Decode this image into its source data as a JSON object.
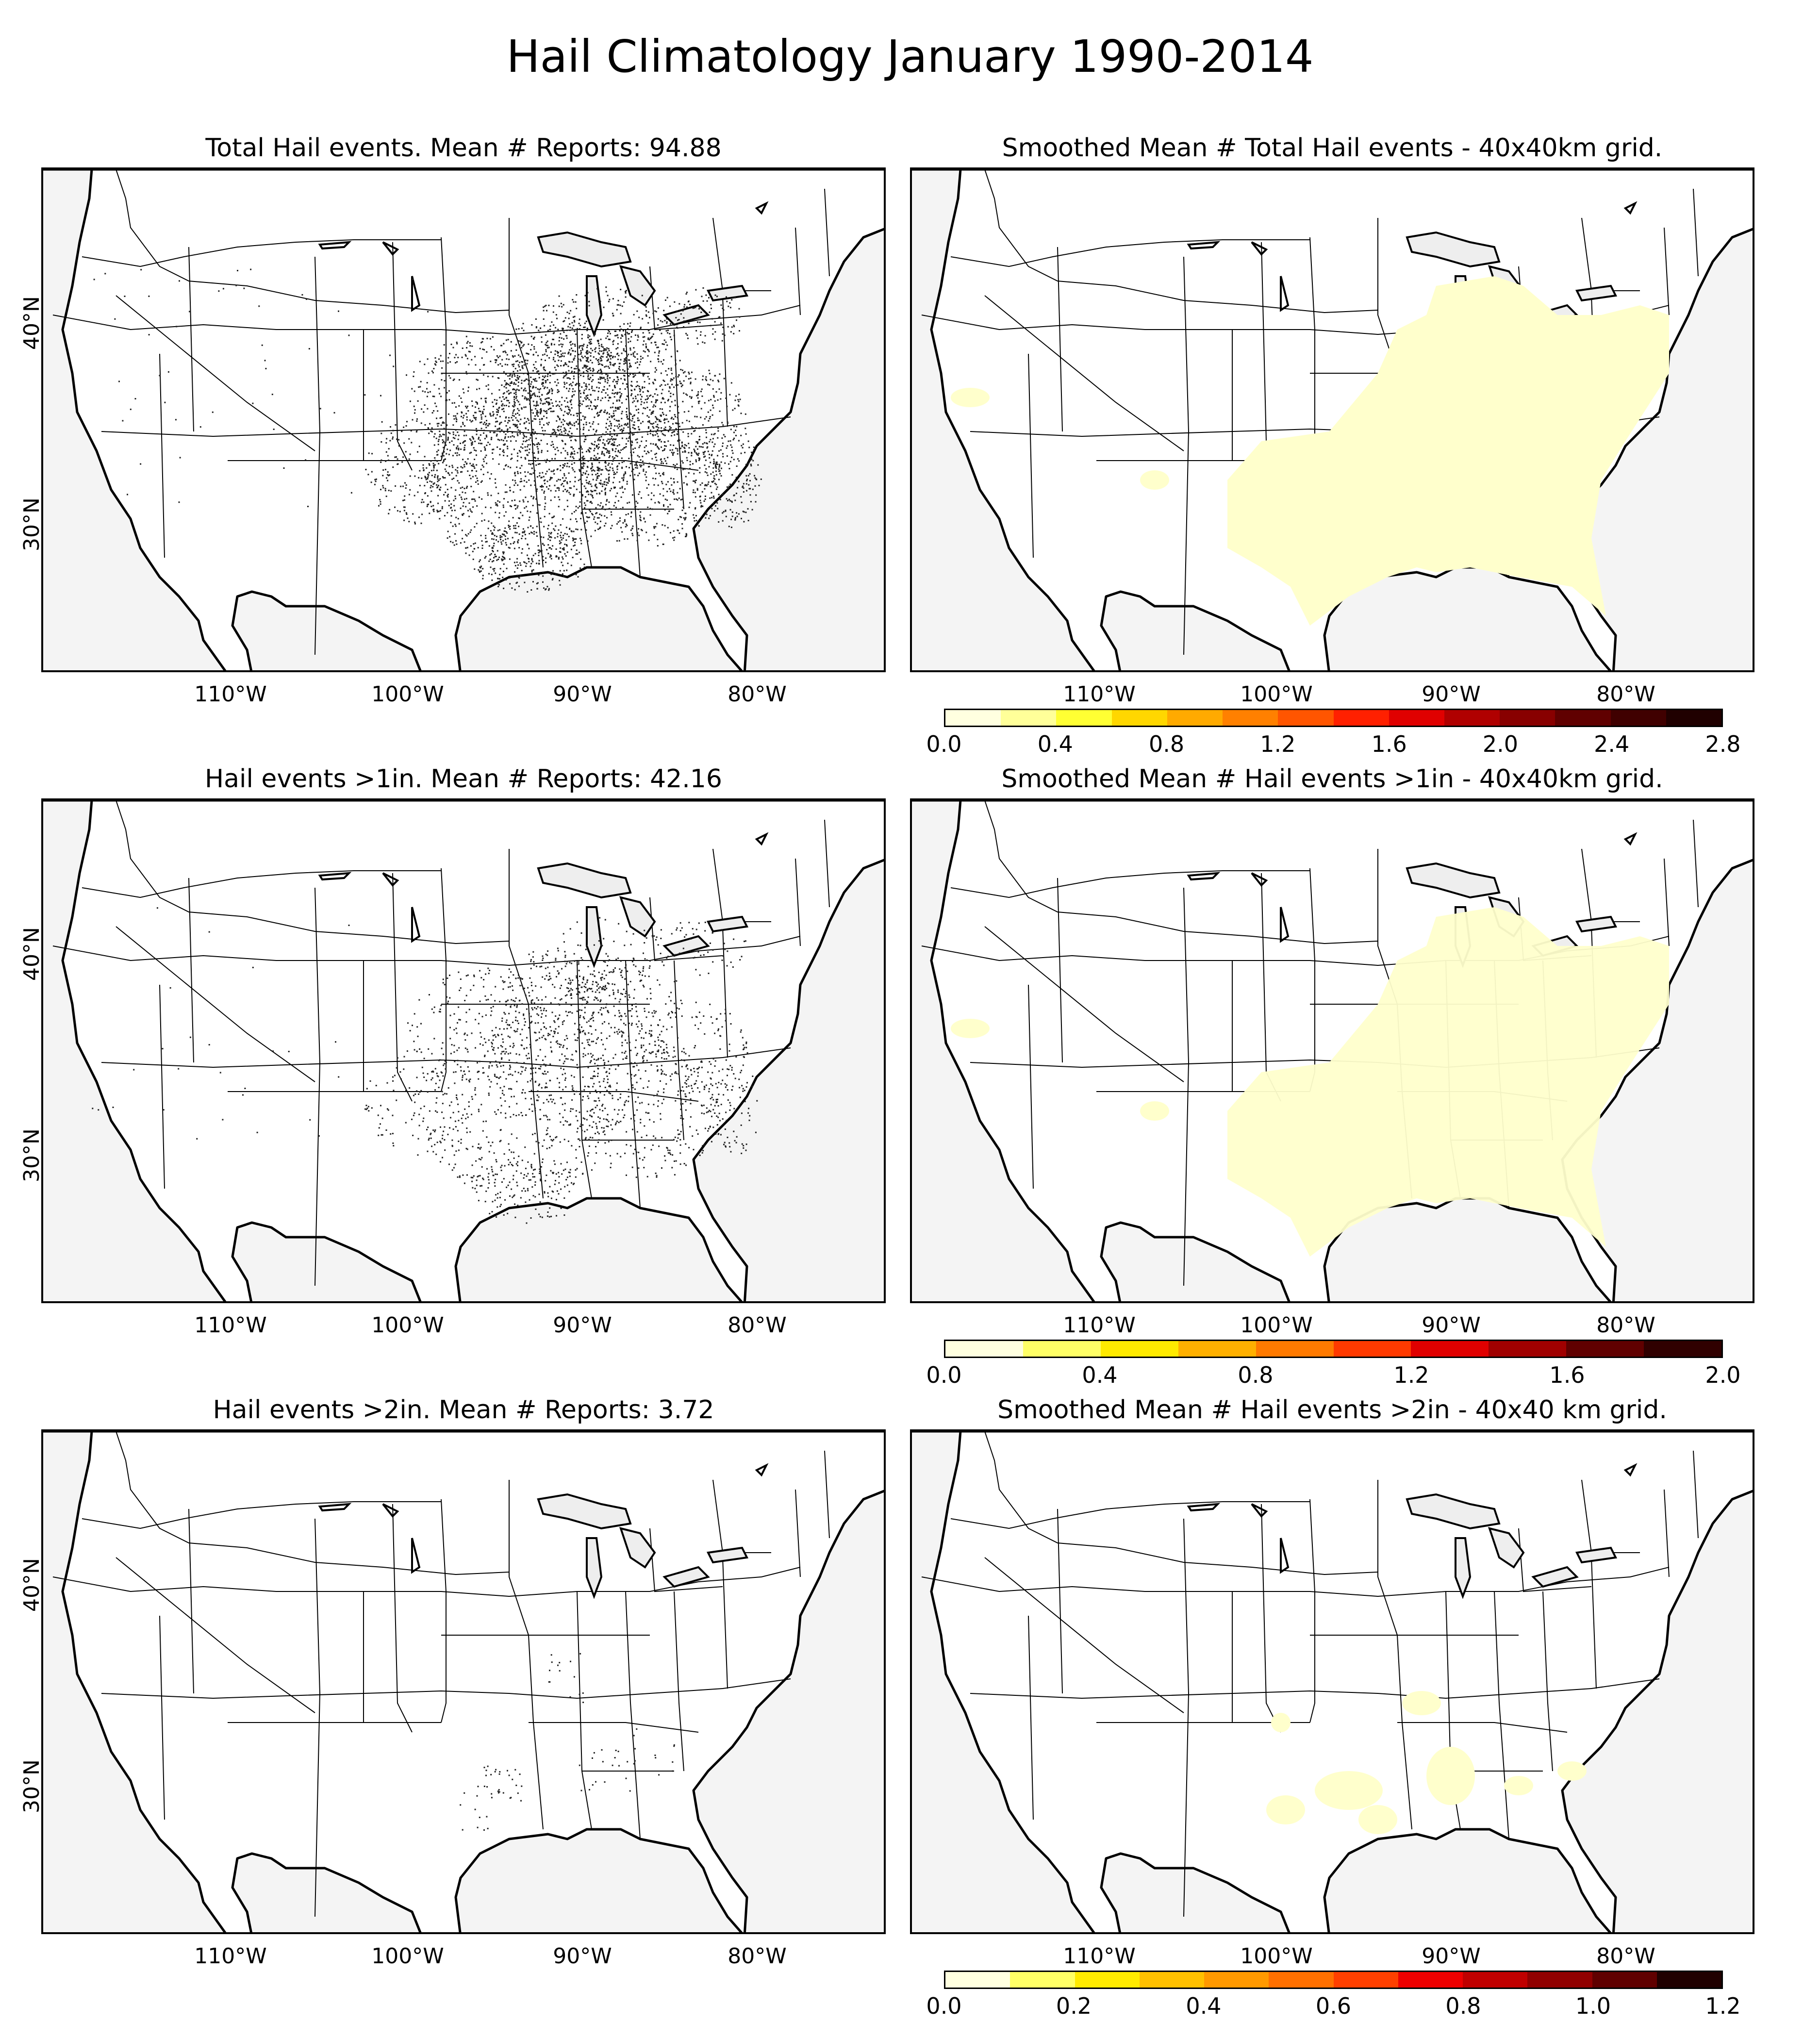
{
  "title": "Hail Climatology January 1990-2014",
  "x_ticks": [
    "110°W",
    "100°W",
    "90°W",
    "80°W"
  ],
  "y_ticks": [
    "40°N",
    "30°N"
  ],
  "colors": {
    "land": "#ffffff",
    "ocean": "#f4f4f4",
    "lakes": "#eeeeee",
    "borders": "#000000",
    "points": "#222222",
    "smooth_fill": "#ffffcc"
  },
  "panels": {
    "p1": {
      "title": "Total Hail events. Mean # Reports: 94.88"
    },
    "p2": {
      "title": "Smoothed Mean # Total Hail events - 40x40km grid."
    },
    "p3": {
      "title": "Hail events >1in. Mean # Reports: 42.16"
    },
    "p4": {
      "title": "Smoothed Mean # Hail events >1in - 40x40km grid."
    },
    "p5": {
      "title": "Hail events >2in. Mean # Reports: 3.72"
    },
    "p6": {
      "title": "Smoothed Mean # Hail events >2in - 40x40 km grid."
    }
  },
  "colorbars": {
    "cb1": {
      "labels": [
        "0.0",
        "0.4",
        "0.8",
        "1.2",
        "1.6",
        "2.0",
        "2.4",
        "2.8"
      ],
      "colors": [
        "#ffffe0",
        "#ffff99",
        "#ffff33",
        "#ffd700",
        "#ffaa00",
        "#ff8000",
        "#ff5500",
        "#ff2000",
        "#e00000",
        "#b00000",
        "#880000",
        "#600000",
        "#400000",
        "#200000"
      ]
    },
    "cb2": {
      "labels": [
        "0.0",
        "0.4",
        "0.8",
        "1.2",
        "1.6",
        "2.0"
      ],
      "colors": [
        "#ffffe0",
        "#ffff66",
        "#ffea00",
        "#ffb000",
        "#ff7a00",
        "#ff3a00",
        "#e00000",
        "#a00000",
        "#600000",
        "#300000"
      ]
    },
    "cb3": {
      "labels": [
        "0.0",
        "0.2",
        "0.4",
        "0.6",
        "0.8",
        "1.0",
        "1.2"
      ],
      "colors": [
        "#ffffe0",
        "#ffff66",
        "#ffea00",
        "#ffc000",
        "#ff9900",
        "#ff7000",
        "#ff4000",
        "#ee0000",
        "#c00000",
        "#900000",
        "#600000",
        "#200000"
      ]
    }
  }
}
